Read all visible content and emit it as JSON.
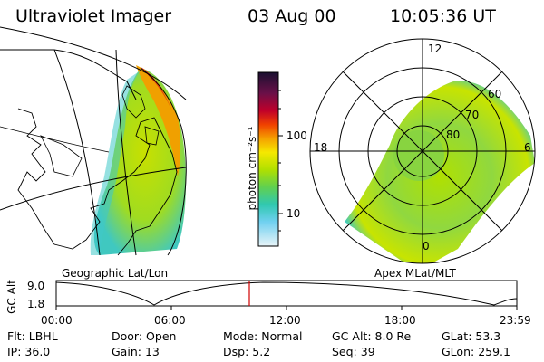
{
  "header": {
    "title": "Ultraviolet Imager",
    "date": "03 Aug 00",
    "time": "10:05:36 UT"
  },
  "colorbar": {
    "unit_label": "photon cm⁻²s⁻¹",
    "ticks": [
      "100",
      "10"
    ],
    "colors": [
      "#1a1030",
      "#5a1040",
      "#a0002a",
      "#e0002a",
      "#f05a00",
      "#f0a000",
      "#f5e000",
      "#c0e000",
      "#70d040",
      "#30c8a0",
      "#40c0e0",
      "#a0e0f0",
      "#e8f4f8"
    ]
  },
  "left_map": {
    "label": "Geographic Lat/Lon"
  },
  "right_map": {
    "label": "Apex MLat/MLT",
    "mlt_labels": [
      "12",
      "18",
      "6",
      "0"
    ],
    "lat_labels": [
      "60",
      "70",
      "80"
    ]
  },
  "timeline": {
    "axis_label": "GC Alt",
    "y_ticks": [
      "9.0",
      "1.8"
    ],
    "x_ticks": [
      "00:00",
      "06:00",
      "12:00",
      "18:00",
      "23:59"
    ],
    "current_time_fraction": 0.42,
    "marker_color": "#d00000"
  },
  "info": {
    "row1": [
      {
        "label": "Flt:",
        "value": "LBHL"
      },
      {
        "label": "Door:",
        "value": "Open"
      },
      {
        "label": "Mode:",
        "value": "Normal"
      },
      {
        "label": "GC Alt:",
        "value": "8.0 Re"
      },
      {
        "label": "GLat:",
        "value": "53.3"
      }
    ],
    "row2": [
      {
        "label": "IP:",
        "value": "36.0"
      },
      {
        "label": "Gain:",
        "value": "13"
      },
      {
        "label": "Dsp:",
        "value": "5.2"
      },
      {
        "label": "Seq:",
        "value": "39"
      },
      {
        "label": "GLon:",
        "value": "259.1"
      }
    ]
  }
}
